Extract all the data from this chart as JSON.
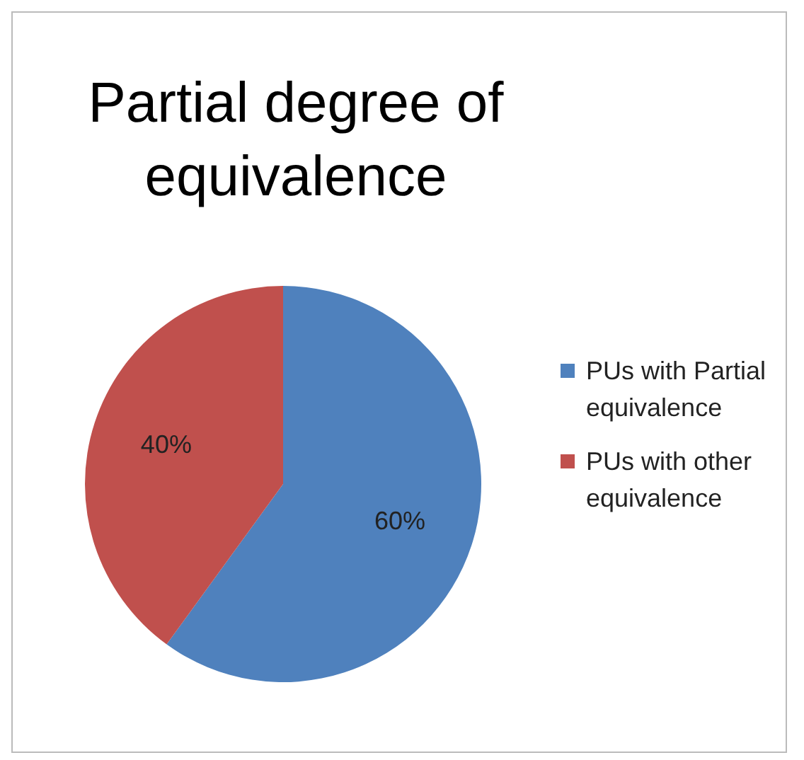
{
  "chart_data": {
    "type": "pie",
    "title": "Partial degree of equivalence",
    "categories": [
      "PUs with Partial equivalence",
      "PUs with other equivalence"
    ],
    "values": [
      60,
      40
    ],
    "colors": [
      "#4f81bd",
      "#c0504d"
    ],
    "value_labels": [
      "60%",
      "40%"
    ],
    "legend": "right"
  }
}
